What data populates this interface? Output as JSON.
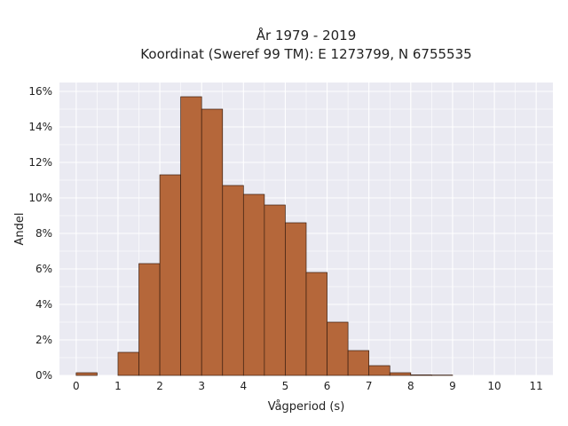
{
  "chart_data": {
    "type": "bar",
    "title_lines": [
      "År 1979 - 2019",
      "Koordinat (Sweref 99 TM): E 1273799, N 6755535"
    ],
    "xlabel": "Vågperiod (s)",
    "ylabel": "Andel",
    "bin_width": 0.5,
    "bins": [
      {
        "x0": 0.0,
        "value": 0.15
      },
      {
        "x0": 0.5,
        "value": 0.0
      },
      {
        "x0": 1.0,
        "value": 1.3
      },
      {
        "x0": 1.5,
        "value": 6.3
      },
      {
        "x0": 2.0,
        "value": 11.3
      },
      {
        "x0": 2.5,
        "value": 15.7
      },
      {
        "x0": 3.0,
        "value": 15.0
      },
      {
        "x0": 3.5,
        "value": 10.7
      },
      {
        "x0": 4.0,
        "value": 10.2
      },
      {
        "x0": 4.5,
        "value": 9.6
      },
      {
        "x0": 5.0,
        "value": 8.6
      },
      {
        "x0": 5.5,
        "value": 5.8
      },
      {
        "x0": 6.0,
        "value": 3.0
      },
      {
        "x0": 6.5,
        "value": 1.4
      },
      {
        "x0": 7.0,
        "value": 0.55
      },
      {
        "x0": 7.5,
        "value": 0.15
      },
      {
        "x0": 8.0,
        "value": 0.03
      },
      {
        "x0": 8.5,
        "value": 0.02
      }
    ],
    "xticks": [
      "0",
      "1",
      "2",
      "3",
      "4",
      "5",
      "6",
      "7",
      "8",
      "9",
      "10",
      "11"
    ],
    "yticks": [
      "0%",
      "2%",
      "4%",
      "6%",
      "8%",
      "10%",
      "12%",
      "14%",
      "16%"
    ],
    "xlim": [
      -0.4,
      11.4
    ],
    "ylim": [
      0,
      16.5
    ],
    "grid": true,
    "bar_color": "#b5673a",
    "bar_edge_color": "#3a1e10",
    "plot_background": "#eaeaf2",
    "grid_color": "#ffffff"
  }
}
